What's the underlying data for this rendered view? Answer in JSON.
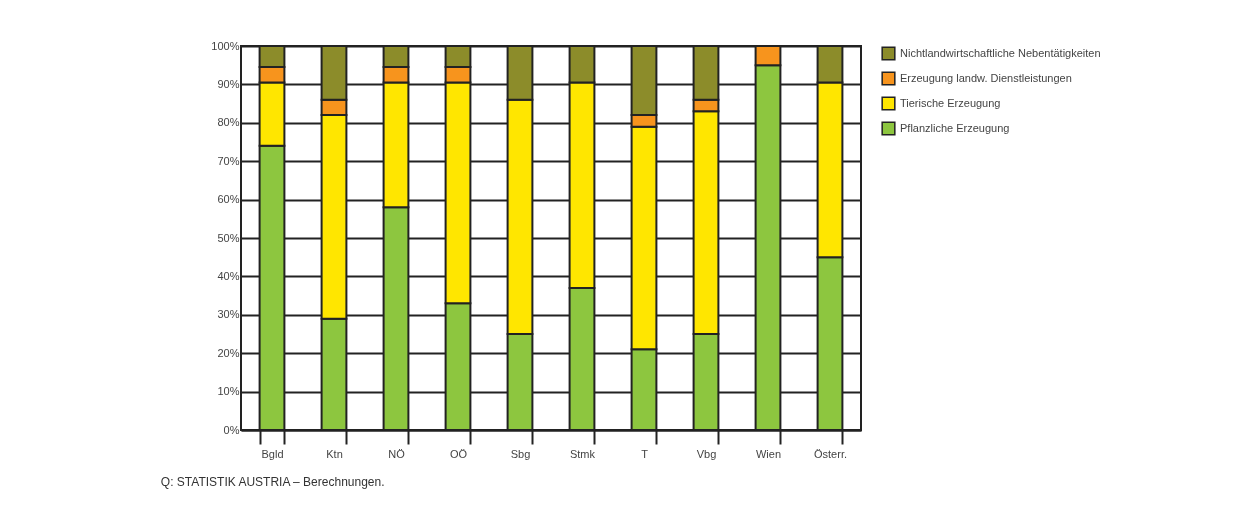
{
  "chart_data": {
    "type": "bar",
    "stacked": true,
    "categories": [
      "Bgld",
      "Ktn",
      "NÖ",
      "OÖ",
      "Sbg",
      "Stmk",
      "T",
      "Vbg",
      "Wien",
      "Österr."
    ],
    "series": [
      {
        "name": "Pflanzliche Erzeugung",
        "color": "#8dc63f",
        "values": [
          74,
          29,
          58,
          33,
          25,
          37,
          21,
          25,
          95,
          45
        ]
      },
      {
        "name": "Tierische Erzeugung",
        "color": "#ffe600",
        "values": [
          16.5,
          53,
          32.5,
          57.5,
          61,
          53.5,
          58,
          58,
          null,
          45.5
        ]
      },
      {
        "name": "Erzeugung landw. Dienstleistungen",
        "color": "#f7941d",
        "values": [
          4,
          4,
          4,
          4,
          null,
          null,
          3,
          3,
          5,
          null
        ]
      },
      {
        "name": "Nichtlandwirtschaftliche Nebentätigkeiten",
        "color": "#8c8c2a",
        "values": [
          5.5,
          14,
          5.5,
          5.5,
          14,
          9.5,
          18,
          14,
          null,
          9.5
        ]
      }
    ],
    "ylim": [
      0,
      100
    ],
    "yticks": [
      {
        "value": 0,
        "label": "0%"
      },
      {
        "value": 10,
        "label": "10%"
      },
      {
        "value": 20,
        "label": "20%"
      },
      {
        "value": 30,
        "label": "30%"
      },
      {
        "value": 40,
        "label": "40%"
      },
      {
        "value": 50,
        "label": "50%"
      },
      {
        "value": 60,
        "label": "60%"
      },
      {
        "value": 70,
        "label": "70%"
      },
      {
        "value": 80,
        "label": "80%"
      },
      {
        "value": 90,
        "label": "90%"
      },
      {
        "value": 100,
        "label": "100%"
      }
    ],
    "grid": "y",
    "legend": "right",
    "annotations": [
      "Q: STATISTIK AUSTRIA – Berechnungen."
    ]
  }
}
